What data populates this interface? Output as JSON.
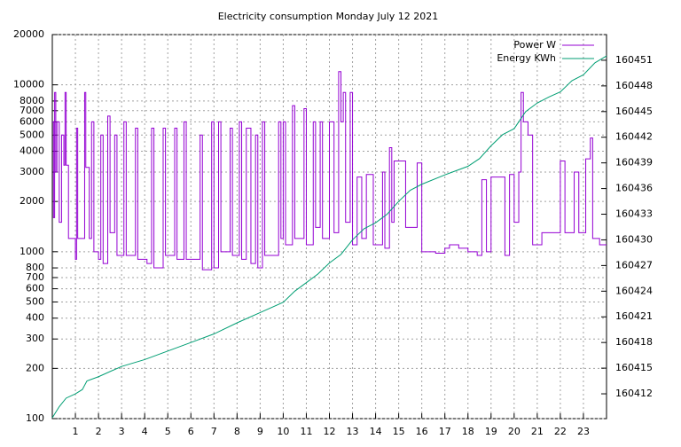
{
  "chart_data": {
    "type": "line",
    "title": "Electricity consumption Monday July 12 2021",
    "log_y": true,
    "grid": true,
    "legend": "top-right",
    "steps": true,
    "xlim": [
      0,
      24
    ],
    "xticks": [
      1,
      2,
      3,
      4,
      5,
      6,
      7,
      8,
      9,
      10,
      11,
      12,
      13,
      14,
      15,
      16,
      17,
      18,
      19,
      20,
      21,
      22,
      23
    ],
    "ylim": [
      100,
      20000
    ],
    "yticks": [
      100,
      200,
      300,
      400,
      500,
      600,
      700,
      800,
      1000,
      2000,
      3000,
      4000,
      5000,
      6000,
      7000,
      8000,
      10000,
      20000
    ],
    "y2lim": [
      160409.1,
      160454
    ],
    "y2ticks": [
      160412,
      160415,
      160418,
      160421,
      160424,
      160427,
      160430,
      160433,
      160436,
      160439,
      160442,
      160445,
      160448,
      160451
    ],
    "series": [
      {
        "name": "Power W",
        "color": "#9400d3",
        "x": [
          0,
          0.05,
          0.1,
          0.15,
          0.2,
          0.3,
          0.4,
          0.5,
          0.55,
          0.6,
          0.7,
          0.9,
          1.0,
          1.05,
          1.1,
          1.4,
          1.45,
          1.6,
          1.7,
          1.8,
          2.0,
          2.1,
          2.2,
          2.4,
          2.5,
          2.7,
          2.8,
          3.1,
          3.2,
          3.6,
          3.7,
          4.1,
          4.3,
          4.4,
          4.8,
          4.9,
          5.3,
          5.4,
          5.7,
          5.8,
          6.4,
          6.5,
          6.9,
          7.0,
          7.2,
          7.3,
          7.7,
          7.8,
          8.1,
          8.2,
          8.4,
          8.6,
          8.8,
          8.9,
          9.1,
          9.2,
          9.8,
          9.9,
          10.0,
          10.1,
          10.4,
          10.5,
          10.9,
          11.0,
          11.3,
          11.4,
          11.6,
          11.7,
          12.0,
          12.2,
          12.4,
          12.5,
          12.6,
          12.7,
          12.9,
          13.0,
          13.2,
          13.4,
          13.6,
          13.9,
          14.3,
          14.4,
          14.6,
          14.7,
          14.8,
          15.3,
          15.8,
          16.0,
          16.6,
          17.0,
          17.2,
          17.6,
          18.0,
          18.4,
          18.6,
          18.8,
          19.0,
          19.6,
          19.8,
          20.0,
          20.2,
          20.3,
          20.4,
          20.6,
          20.8,
          21.2,
          22.0,
          22.2,
          22.6,
          22.8,
          23.1,
          23.3,
          23.4,
          23.7,
          24.0
        ],
        "values": [
          6000,
          1600,
          9000,
          3000,
          6000,
          1500,
          5000,
          3300,
          9000,
          3300,
          1200,
          1200,
          900,
          5500,
          1200,
          9000,
          3200,
          1200,
          6000,
          1000,
          900,
          5000,
          850,
          6500,
          1300,
          5000,
          950,
          6000,
          950,
          5500,
          900,
          850,
          5500,
          800,
          5500,
          950,
          5500,
          900,
          6000,
          900,
          5000,
          780,
          6000,
          800,
          6000,
          1000,
          5500,
          950,
          6000,
          900,
          5500,
          850,
          5000,
          800,
          6000,
          950,
          6000,
          1200,
          6000,
          1100,
          7500,
          1200,
          7200,
          1100,
          6000,
          1400,
          6000,
          1200,
          6000,
          1300,
          12000,
          6000,
          9000,
          1500,
          9000,
          1100,
          2800,
          1200,
          2900,
          1100,
          3000,
          1050,
          4200,
          1500,
          3500,
          1400,
          3400,
          1000,
          980,
          1050,
          1100,
          1050,
          1000,
          950,
          2700,
          1000,
          2800,
          950,
          2900,
          1500,
          3000,
          9000,
          6000,
          5000,
          1100,
          1300,
          3500,
          1300,
          3000,
          1300,
          3600,
          4800,
          1200,
          1100,
          1100
        ]
      },
      {
        "name": "Energy KWh",
        "color": "#009e73",
        "axis": "y2",
        "x": [
          0,
          0.3,
          0.6,
          1.0,
          1.3,
          1.5,
          2.0,
          3.0,
          4.0,
          5.0,
          6.0,
          7.0,
          8.0,
          9.0,
          10.0,
          10.5,
          11.0,
          11.5,
          12.0,
          12.5,
          13.0,
          13.5,
          14.0,
          14.5,
          15.0,
          15.5,
          16.0,
          17.0,
          18.0,
          18.5,
          19.0,
          19.5,
          20.0,
          20.5,
          21.0,
          21.5,
          22.0,
          22.5,
          23.0,
          23.5,
          24.0
        ],
        "values": [
          160409.2,
          160410.5,
          160411.5,
          160412,
          160412.5,
          160413.5,
          160414,
          160415.2,
          160416,
          160417,
          160418,
          160419,
          160420.3,
          160421.5,
          160422.7,
          160424,
          160425,
          160426,
          160427.3,
          160428.3,
          160430,
          160431.3,
          160432,
          160433,
          160434.5,
          160435.8,
          160436.5,
          160437.6,
          160438.6,
          160439.5,
          160441,
          160442.3,
          160443,
          160445,
          160446,
          160446.7,
          160447.3,
          160448.6,
          160449.3,
          160450.7,
          160451.5
        ]
      }
    ]
  }
}
